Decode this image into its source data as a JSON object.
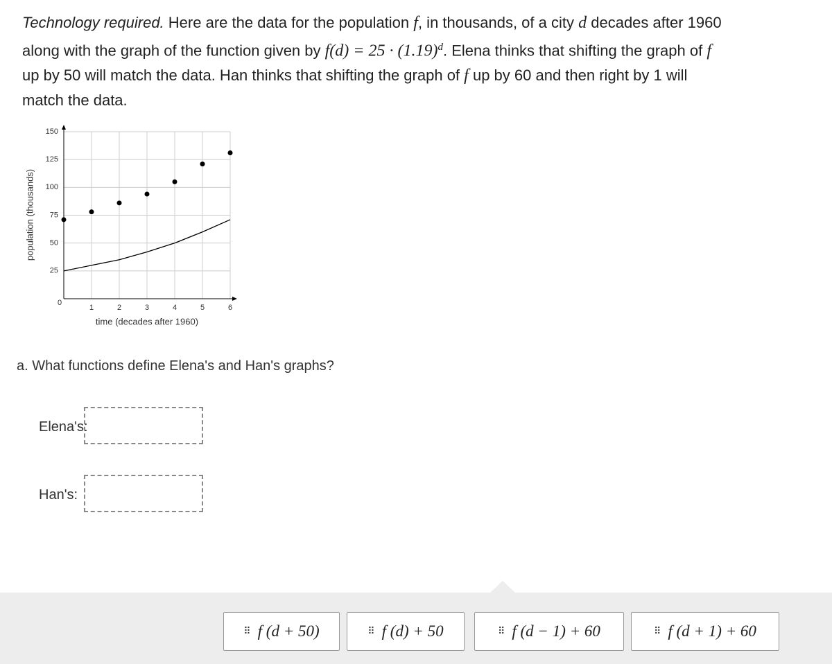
{
  "question": {
    "lead": "Technology required.",
    "parts": [
      "Here are the data for the population",
      "f",
      ", in thousands, of a city",
      "d",
      "decades after 1960 along with the graph of the function given by",
      "f(d) = 25 · (1.19)",
      "d",
      ". Elena thinks that shifting the graph of",
      "f",
      "up by 50 will match the data. Han thinks that shifting the graph of",
      "f",
      "up by 60 and then right by 1 will match the data."
    ]
  },
  "chart_data": {
    "type": "scatter",
    "x_label": "time (decades after 1960)",
    "y_label": "population (thousands)",
    "x": [
      0,
      1,
      2,
      3,
      4,
      5,
      6
    ],
    "values": [
      71,
      78,
      86,
      94,
      105,
      121,
      131
    ],
    "color": "#000000",
    "curve": {
      "x": [
        0,
        1,
        2,
        3,
        4,
        5,
        6
      ],
      "values": [
        25,
        30,
        35,
        42,
        50,
        60,
        71
      ],
      "color": "#000000"
    },
    "xlim": [
      0,
      6
    ],
    "ylim": [
      0,
      150
    ],
    "xticks": [
      0,
      1,
      2,
      3,
      4,
      5,
      6
    ],
    "yticks": [
      25,
      50,
      75,
      100,
      125,
      150
    ],
    "grid": true
  },
  "part_a": {
    "prompt": "a. What functions define Elena's and Han's graphs?",
    "blanks": [
      "Elena's:",
      "Han's:"
    ]
  },
  "choices": [
    "f (d + 50)",
    "f (d) + 50",
    "f (d − 1) + 60",
    "f (d + 1) + 60"
  ]
}
